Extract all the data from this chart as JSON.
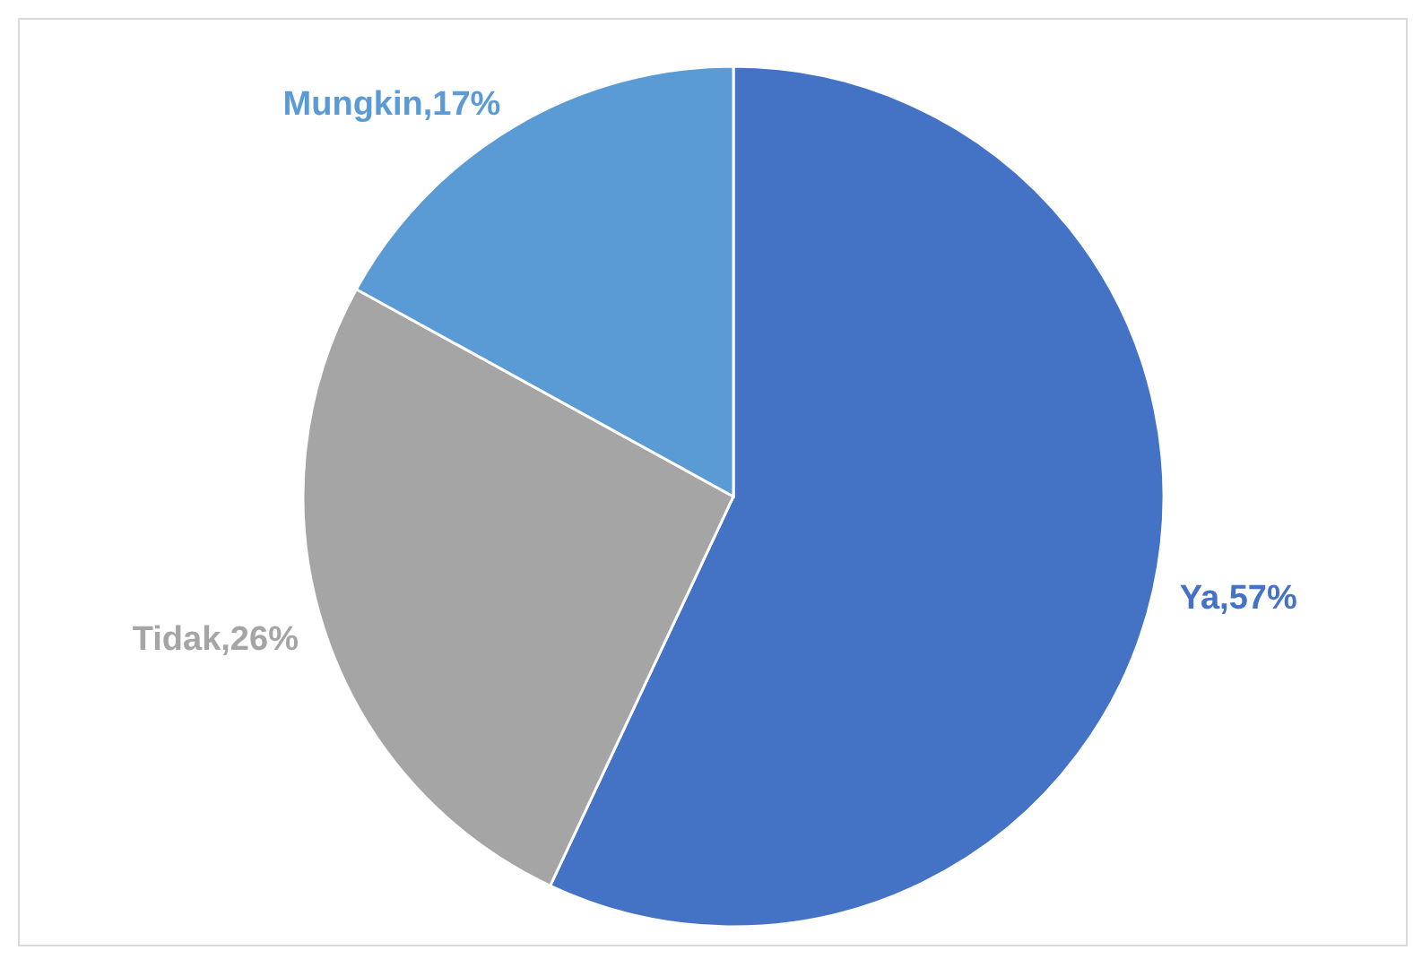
{
  "chart_data": {
    "type": "pie",
    "categories": [
      "Ya",
      "Tidak",
      "Mungkin"
    ],
    "values": [
      57,
      26,
      17
    ],
    "colors": [
      "#4472c4",
      "#a5a5a5",
      "#5b9bd5"
    ],
    "value_labels": [
      "57%",
      "26%",
      "17%"
    ]
  }
}
